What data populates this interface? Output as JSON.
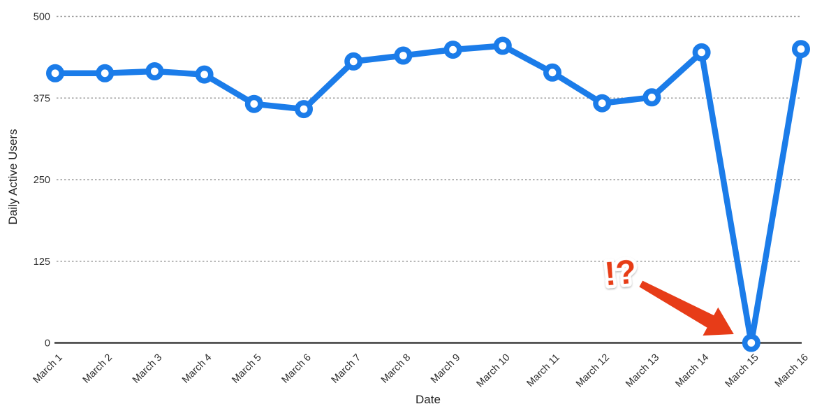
{
  "chart_data": {
    "type": "line",
    "title": "",
    "xlabel": "Date",
    "ylabel": "Daily Active Users",
    "categories": [
      "March 1",
      "March 2",
      "March 3",
      "March 4",
      "March 5",
      "March 6",
      "March 7",
      "March 8",
      "March 9",
      "March 10",
      "March 11",
      "March 12",
      "March 13",
      "March 14",
      "March 15",
      "March 16"
    ],
    "series": [
      {
        "name": "Daily Active Users",
        "values": [
          413,
          413,
          416,
          411,
          366,
          358,
          431,
          440,
          449,
          455,
          414,
          367,
          376,
          445,
          0,
          450
        ]
      }
    ],
    "ylim": [
      0,
      500
    ],
    "yticks": [
      0,
      125,
      250,
      375,
      500
    ],
    "grid": "horizontal-dashed",
    "legend": "none",
    "marker": "open-circle"
  },
  "annotation": {
    "label": "!?",
    "target": "March 15"
  },
  "colors": {
    "line": "#1b7ce9",
    "marker_fill": "#ffffff",
    "annotation": "#e73c18",
    "axis": "#3b3b3b",
    "grid": "#999999",
    "text": "#2e2e2e"
  }
}
